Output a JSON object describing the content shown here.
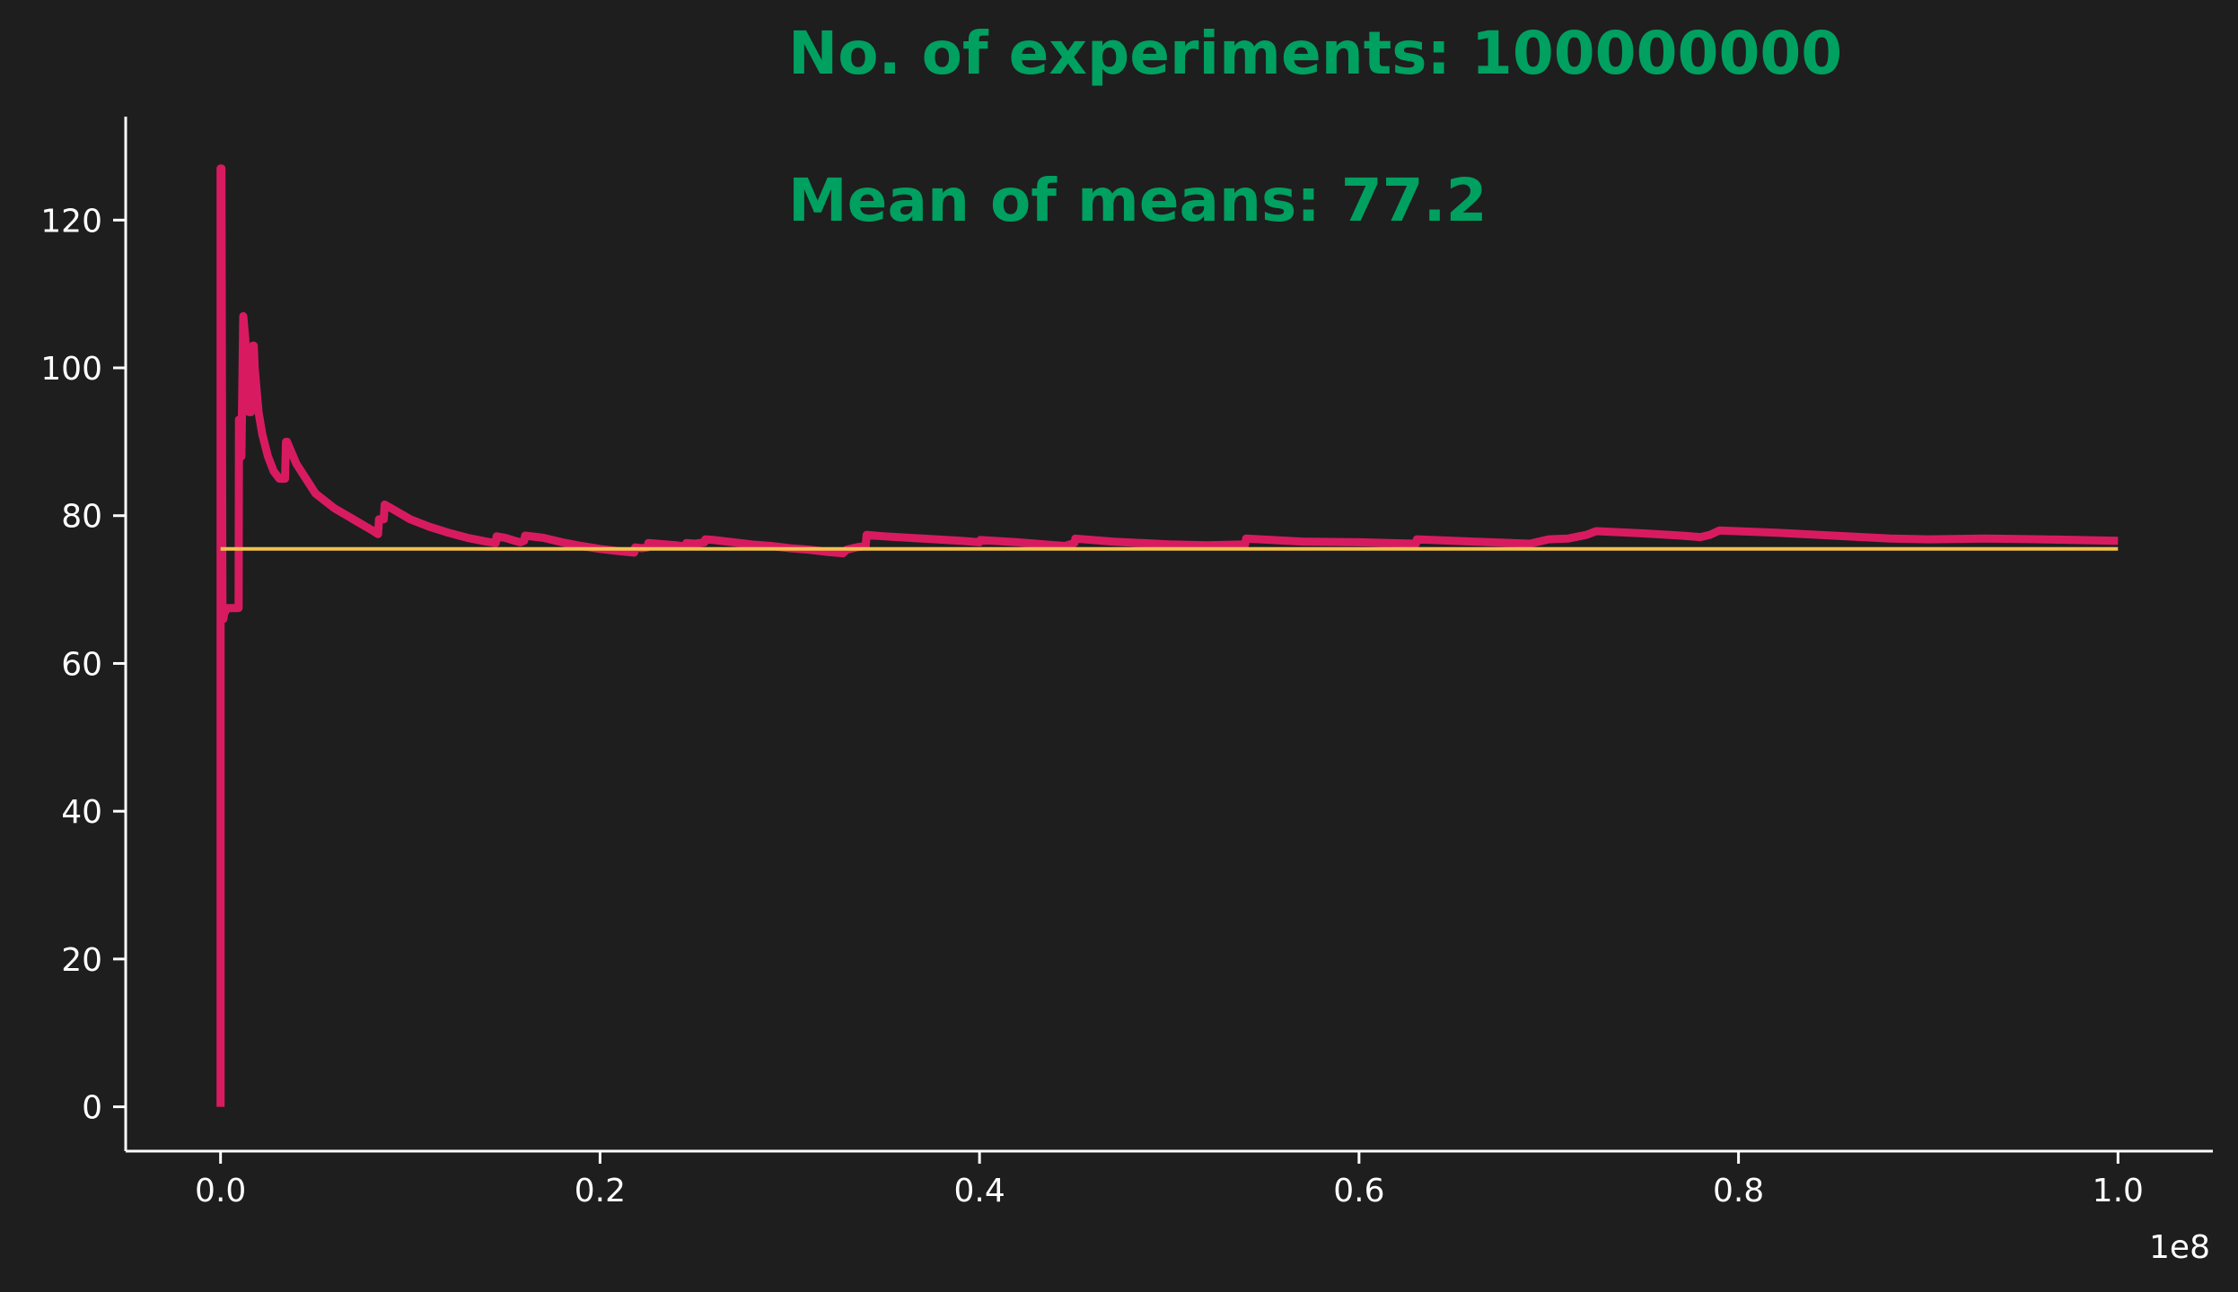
{
  "chart_data": {
    "type": "line",
    "annotations": [
      {
        "text": "No. of experiments: 100000000"
      },
      {
        "text": "Mean of means: 77.2"
      }
    ],
    "xlim": [
      -0.05,
      1.05
    ],
    "ylim": [
      -6,
      134
    ],
    "x_scale_label": "1e8",
    "x_ticks": [
      0.0,
      0.2,
      0.4,
      0.6,
      0.8,
      1.0
    ],
    "x_tick_labels": [
      "0.0",
      "0.2",
      "0.4",
      "0.6",
      "0.8",
      "1.0"
    ],
    "y_ticks": [
      0,
      20,
      40,
      60,
      80,
      100,
      120
    ],
    "y_tick_labels": [
      "0",
      "20",
      "40",
      "60",
      "80",
      "100",
      "120"
    ],
    "grid": false,
    "series": [
      {
        "color": "#d81b60",
        "x": [
          0.0,
          0.0,
          0.0005,
          0.001,
          0.0015,
          0.002,
          0.0025,
          0.003,
          0.0035,
          0.004,
          0.0045,
          0.005,
          0.006,
          0.007,
          0.008,
          0.009,
          0.0095,
          0.0097,
          0.01,
          0.0102,
          0.0105,
          0.011,
          0.012,
          0.013,
          0.014,
          0.015,
          0.016,
          0.017,
          0.0175,
          0.018,
          0.02,
          0.022,
          0.025,
          0.028,
          0.031,
          0.034,
          0.0345,
          0.035,
          0.04,
          0.045,
          0.05,
          0.06,
          0.07,
          0.08,
          0.083,
          0.0835,
          0.085,
          0.086,
          0.0865,
          0.09,
          0.1,
          0.11,
          0.12,
          0.13,
          0.14,
          0.145,
          0.1455,
          0.15,
          0.155,
          0.158,
          0.16,
          0.1605,
          0.17,
          0.18,
          0.19,
          0.2,
          0.21,
          0.218,
          0.2185,
          0.222,
          0.225,
          0.2255,
          0.23,
          0.24,
          0.245,
          0.2455,
          0.25,
          0.255,
          0.2555,
          0.26,
          0.27,
          0.28,
          0.29,
          0.3,
          0.31,
          0.32,
          0.328,
          0.33,
          0.335,
          0.34,
          0.3405,
          0.345,
          0.35,
          0.37,
          0.39,
          0.4,
          0.4005,
          0.42,
          0.44,
          0.445,
          0.45,
          0.4505,
          0.47,
          0.5,
          0.52,
          0.54,
          0.5405,
          0.57,
          0.6,
          0.63,
          0.6305,
          0.66,
          0.69,
          0.7,
          0.71,
          0.72,
          0.725,
          0.75,
          0.77,
          0.78,
          0.785,
          0.79,
          0.82,
          0.85,
          0.88,
          0.9,
          0.93,
          0.96,
          1.0
        ],
        "y": [
          0,
          127,
          127,
          66,
          66,
          67,
          67,
          67.5,
          67.5,
          67.5,
          67.5,
          67.5,
          67.5,
          67.5,
          67.5,
          67.5,
          67.5,
          93,
          93,
          88,
          88,
          88,
          107,
          104,
          98,
          94,
          94,
          103,
          103,
          100,
          94,
          91,
          88,
          86,
          85,
          85,
          90,
          90,
          87,
          85,
          83,
          81,
          79.5,
          78,
          77.5,
          79.5,
          79.5,
          79.5,
          81.5,
          81,
          79.5,
          78.5,
          77.7,
          77,
          76.5,
          76.3,
          77.2,
          77,
          76.6,
          76.4,
          76.6,
          77.3,
          77,
          76.4,
          75.9,
          75.5,
          75.2,
          75,
          75.7,
          75.6,
          75.7,
          76.3,
          76.2,
          76,
          75.8,
          76.3,
          76.2,
          76.4,
          76.8,
          76.7,
          76.4,
          76.1,
          75.9,
          75.6,
          75.4,
          75.1,
          74.9,
          75.4,
          75.7,
          75.9,
          77.4,
          77.3,
          77.2,
          76.9,
          76.6,
          76.4,
          76.7,
          76.4,
          76,
          75.9,
          76.3,
          76.9,
          76.5,
          76.1,
          76,
          76.1,
          76.9,
          76.5,
          76.4,
          76.2,
          76.8,
          76.5,
          76.2,
          76.8,
          76.9,
          77.4,
          77.9,
          77.6,
          77.3,
          77.1,
          77.4,
          78,
          77.7,
          77.3,
          76.9,
          76.8,
          76.9,
          76.8,
          76.6
        ],
        "line_width": 9
      },
      {
        "color": "#f2c14e",
        "x": [
          0.0,
          1.0
        ],
        "y": [
          75.5,
          75.5
        ],
        "line_width": 4
      }
    ]
  }
}
